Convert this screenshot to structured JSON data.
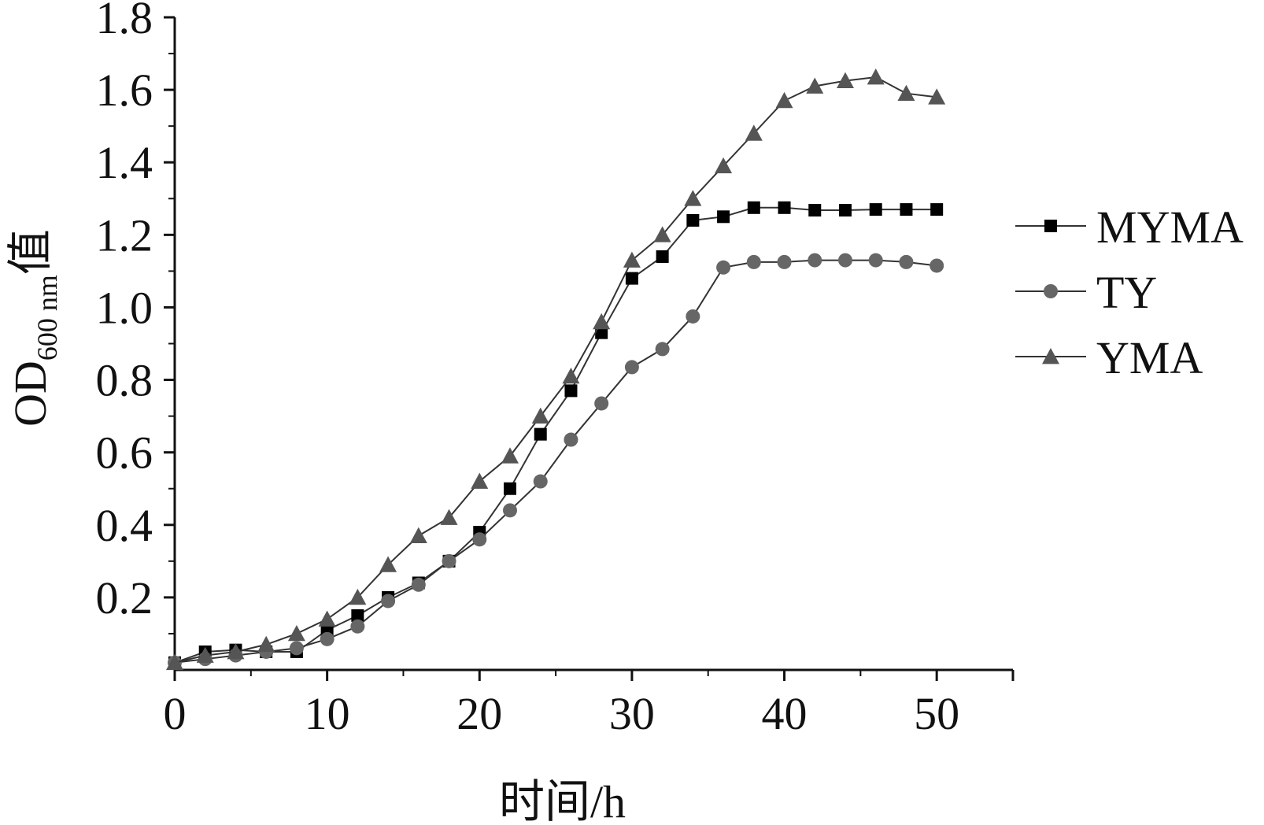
{
  "chart_data": {
    "type": "line",
    "title": "",
    "xlabel": "时间/h",
    "ylabel_main": "OD",
    "ylabel_sub": "600 nm",
    "ylabel_suffix": "值",
    "xlim": [
      0,
      55
    ],
    "ylim": [
      0,
      1.8
    ],
    "x_ticks": [
      0,
      10,
      20,
      30,
      40,
      50
    ],
    "x_tick_labels": [
      "0",
      "10",
      "20",
      "30",
      "40",
      "50"
    ],
    "y_ticks": [
      0.2,
      0.4,
      0.6,
      0.8,
      1.0,
      1.2,
      1.4,
      1.6,
      1.8
    ],
    "y_tick_labels": [
      "0.2",
      "0.4",
      "0.6",
      "0.8",
      "1.0",
      "1.2",
      "1.4",
      "1.6",
      "1.8"
    ],
    "x": [
      0,
      2,
      4,
      6,
      8,
      10,
      12,
      14,
      16,
      18,
      20,
      22,
      24,
      26,
      28,
      30,
      32,
      34,
      36,
      38,
      40,
      42,
      44,
      46,
      48,
      50
    ],
    "series": [
      {
        "name": "MYMA",
        "marker": "square",
        "color": "#000000",
        "values": [
          0.02,
          0.05,
          0.055,
          0.05,
          0.05,
          0.11,
          0.15,
          0.2,
          0.24,
          0.3,
          0.38,
          0.5,
          0.65,
          0.77,
          0.93,
          1.08,
          1.14,
          1.24,
          1.25,
          1.275,
          1.275,
          1.268,
          1.268,
          1.27,
          1.27,
          1.27
        ]
      },
      {
        "name": "TY",
        "marker": "circle",
        "color": "#666666",
        "values": [
          0.02,
          0.03,
          0.04,
          0.05,
          0.06,
          0.085,
          0.12,
          0.19,
          0.235,
          0.3,
          0.36,
          0.44,
          0.52,
          0.635,
          0.735,
          0.835,
          0.885,
          0.975,
          1.11,
          1.125,
          1.125,
          1.13,
          1.13,
          1.13,
          1.125,
          1.115
        ]
      },
      {
        "name": "YMA",
        "marker": "triangle",
        "color": "#555555",
        "values": [
          0.02,
          0.04,
          0.05,
          0.07,
          0.1,
          0.14,
          0.2,
          0.29,
          0.37,
          0.42,
          0.52,
          0.59,
          0.7,
          0.81,
          0.96,
          1.13,
          1.2,
          1.3,
          1.39,
          1.48,
          1.57,
          1.61,
          1.625,
          1.635,
          1.59,
          1.58
        ]
      }
    ],
    "legend_position": "right"
  }
}
